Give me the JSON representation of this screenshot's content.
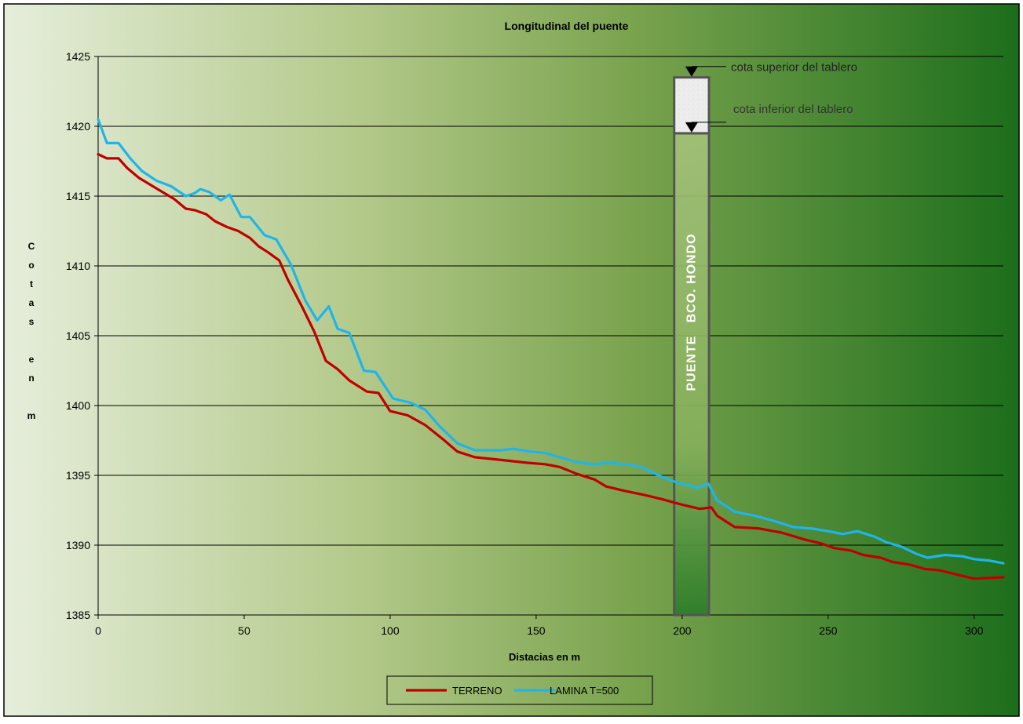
{
  "chart_data": {
    "type": "line",
    "title": "Longitudinal del puente",
    "xlabel": "Distacias en m",
    "ylabel": "Cotas en m",
    "xlim": [
      0,
      310
    ],
    "ylim": [
      1385,
      1425
    ],
    "x_ticks": [
      0,
      50,
      100,
      150,
      200,
      250,
      300
    ],
    "y_ticks": [
      1385,
      1390,
      1395,
      1400,
      1405,
      1410,
      1415,
      1420,
      1425
    ],
    "grid": "horizontal",
    "legend_position": "bottom-center",
    "series": [
      {
        "name": "TERRENO",
        "color": "#c00000",
        "points": [
          [
            0,
            1418.0
          ],
          [
            3,
            1417.7
          ],
          [
            7,
            1417.7
          ],
          [
            10,
            1417.0
          ],
          [
            14,
            1416.3
          ],
          [
            18,
            1415.8
          ],
          [
            22,
            1415.3
          ],
          [
            26,
            1414.8
          ],
          [
            30,
            1414.1
          ],
          [
            33,
            1414.0
          ],
          [
            37,
            1413.7
          ],
          [
            40,
            1413.2
          ],
          [
            44,
            1412.8
          ],
          [
            48,
            1412.5
          ],
          [
            52,
            1412.0
          ],
          [
            55,
            1411.4
          ],
          [
            58,
            1411.0
          ],
          [
            62,
            1410.4
          ],
          [
            65,
            1409.0
          ],
          [
            70,
            1407.0
          ],
          [
            74,
            1405.3
          ],
          [
            78,
            1403.2
          ],
          [
            82,
            1402.6
          ],
          [
            86,
            1401.8
          ],
          [
            92,
            1401.0
          ],
          [
            96,
            1400.9
          ],
          [
            100,
            1399.6
          ],
          [
            106,
            1399.3
          ],
          [
            112,
            1398.6
          ],
          [
            118,
            1397.6
          ],
          [
            123,
            1396.7
          ],
          [
            129,
            1396.3
          ],
          [
            138,
            1396.1
          ],
          [
            147,
            1395.9
          ],
          [
            153,
            1395.8
          ],
          [
            158,
            1395.6
          ],
          [
            164,
            1395.1
          ],
          [
            170,
            1394.7
          ],
          [
            174,
            1394.2
          ],
          [
            180,
            1393.9
          ],
          [
            187,
            1393.6
          ],
          [
            193,
            1393.3
          ],
          [
            200,
            1392.9
          ],
          [
            206,
            1392.6
          ],
          [
            210,
            1392.7
          ],
          [
            212,
            1392.1
          ],
          [
            218,
            1391.3
          ],
          [
            226,
            1391.2
          ],
          [
            234,
            1390.9
          ],
          [
            242,
            1390.4
          ],
          [
            248,
            1390.1
          ],
          [
            252,
            1389.8
          ],
          [
            258,
            1389.6
          ],
          [
            262,
            1389.3
          ],
          [
            268,
            1389.1
          ],
          [
            272,
            1388.8
          ],
          [
            278,
            1388.6
          ],
          [
            283,
            1388.3
          ],
          [
            288,
            1388.2
          ],
          [
            292,
            1388.0
          ],
          [
            296,
            1387.8
          ],
          [
            300,
            1387.6
          ],
          [
            310,
            1387.7
          ]
        ]
      },
      {
        "name": "LAMINA T=500",
        "color": "#1fb5ea",
        "points": [
          [
            0,
            1420.5
          ],
          [
            3,
            1418.8
          ],
          [
            7,
            1418.8
          ],
          [
            11,
            1417.7
          ],
          [
            15,
            1416.8
          ],
          [
            20,
            1416.1
          ],
          [
            25,
            1415.7
          ],
          [
            30,
            1415.0
          ],
          [
            33,
            1415.2
          ],
          [
            35,
            1415.5
          ],
          [
            38,
            1415.3
          ],
          [
            42,
            1414.7
          ],
          [
            45,
            1415.1
          ],
          [
            49,
            1413.5
          ],
          [
            52,
            1413.5
          ],
          [
            57,
            1412.2
          ],
          [
            61,
            1411.9
          ],
          [
            66,
            1410.1
          ],
          [
            71,
            1407.5
          ],
          [
            75,
            1406.1
          ],
          [
            79,
            1407.1
          ],
          [
            82,
            1405.5
          ],
          [
            86,
            1405.2
          ],
          [
            91,
            1402.5
          ],
          [
            95,
            1402.4
          ],
          [
            101,
            1400.5
          ],
          [
            107,
            1400.2
          ],
          [
            112,
            1399.7
          ],
          [
            117,
            1398.5
          ],
          [
            123,
            1397.3
          ],
          [
            129,
            1396.8
          ],
          [
            138,
            1396.8
          ],
          [
            142,
            1396.9
          ],
          [
            148,
            1396.7
          ],
          [
            153,
            1396.6
          ],
          [
            158,
            1396.3
          ],
          [
            165,
            1395.9
          ],
          [
            170,
            1395.8
          ],
          [
            174,
            1395.9
          ],
          [
            181,
            1395.8
          ],
          [
            186,
            1395.6
          ],
          [
            193,
            1394.9
          ],
          [
            198,
            1394.5
          ],
          [
            202,
            1394.3
          ],
          [
            205,
            1394.1
          ],
          [
            209,
            1394.4
          ],
          [
            212,
            1393.2
          ],
          [
            218,
            1392.4
          ],
          [
            225,
            1392.1
          ],
          [
            232,
            1391.7
          ],
          [
            238,
            1391.3
          ],
          [
            244,
            1391.2
          ],
          [
            250,
            1391.0
          ],
          [
            255,
            1390.8
          ],
          [
            260,
            1391.0
          ],
          [
            266,
            1390.6
          ],
          [
            270,
            1390.2
          ],
          [
            275,
            1389.9
          ],
          [
            280,
            1389.4
          ],
          [
            284,
            1389.1
          ],
          [
            290,
            1389.3
          ],
          [
            296,
            1389.2
          ],
          [
            300,
            1389.0
          ],
          [
            305,
            1388.9
          ],
          [
            310,
            1388.7
          ]
        ]
      }
    ],
    "annotations": {
      "bridge": {
        "label": "PUENTE   BCO. HONDO",
        "x_range": [
          197,
          210
        ],
        "deck_top": 1423.5,
        "deck_bottom": 1419.5,
        "base": 1385
      },
      "deck_top_label": "cota superior del tablero",
      "deck_bottom_label": "cota inferior del tablero"
    },
    "ylabel_display": [
      "C",
      "o",
      "t",
      "a",
      "s",
      "",
      "e",
      "n",
      "",
      "m"
    ]
  }
}
